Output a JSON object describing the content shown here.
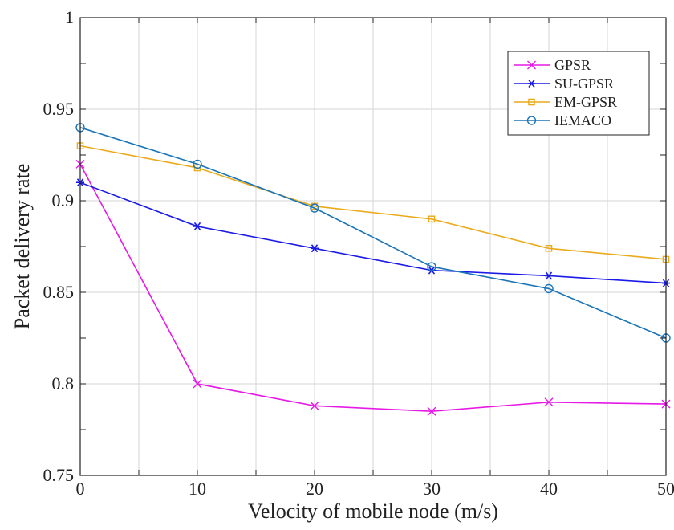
{
  "chart_data": {
    "type": "line",
    "title": "",
    "xlabel": "Velocity of mobile node (m/s)",
    "ylabel": "Packet delivery rate",
    "x": [
      0,
      10,
      20,
      30,
      40,
      50
    ],
    "xlim": [
      0,
      50
    ],
    "ylim": [
      0.75,
      1
    ],
    "xticks": [
      0,
      10,
      20,
      30,
      40,
      50
    ],
    "yticks": [
      0.75,
      0.8,
      0.85,
      0.9,
      0.95,
      1
    ],
    "xtick_labels": [
      "0",
      "10",
      "20",
      "30",
      "40",
      "50"
    ],
    "ytick_labels": [
      "0.75",
      "0.8",
      "0.85",
      "0.9",
      "0.95",
      "1"
    ],
    "grid": true,
    "legend_position": "top-right",
    "series": [
      {
        "name": "GPSR",
        "color": "#e619e6",
        "marker": "x",
        "values": [
          0.92,
          0.8,
          0.788,
          0.785,
          0.79,
          0.789
        ]
      },
      {
        "name": "SU-GPSR",
        "color": "#1a1ae6",
        "marker": "asterisk",
        "values": [
          0.91,
          0.886,
          0.874,
          0.862,
          0.859,
          0.855
        ]
      },
      {
        "name": "EM-GPSR",
        "color": "#eaaa1a",
        "marker": "square",
        "values": [
          0.93,
          0.918,
          0.897,
          0.89,
          0.874,
          0.868
        ]
      },
      {
        "name": "IEMACO",
        "color": "#1a75b8",
        "marker": "circle",
        "values": [
          0.94,
          0.92,
          0.896,
          0.864,
          0.852,
          0.825
        ]
      }
    ]
  }
}
